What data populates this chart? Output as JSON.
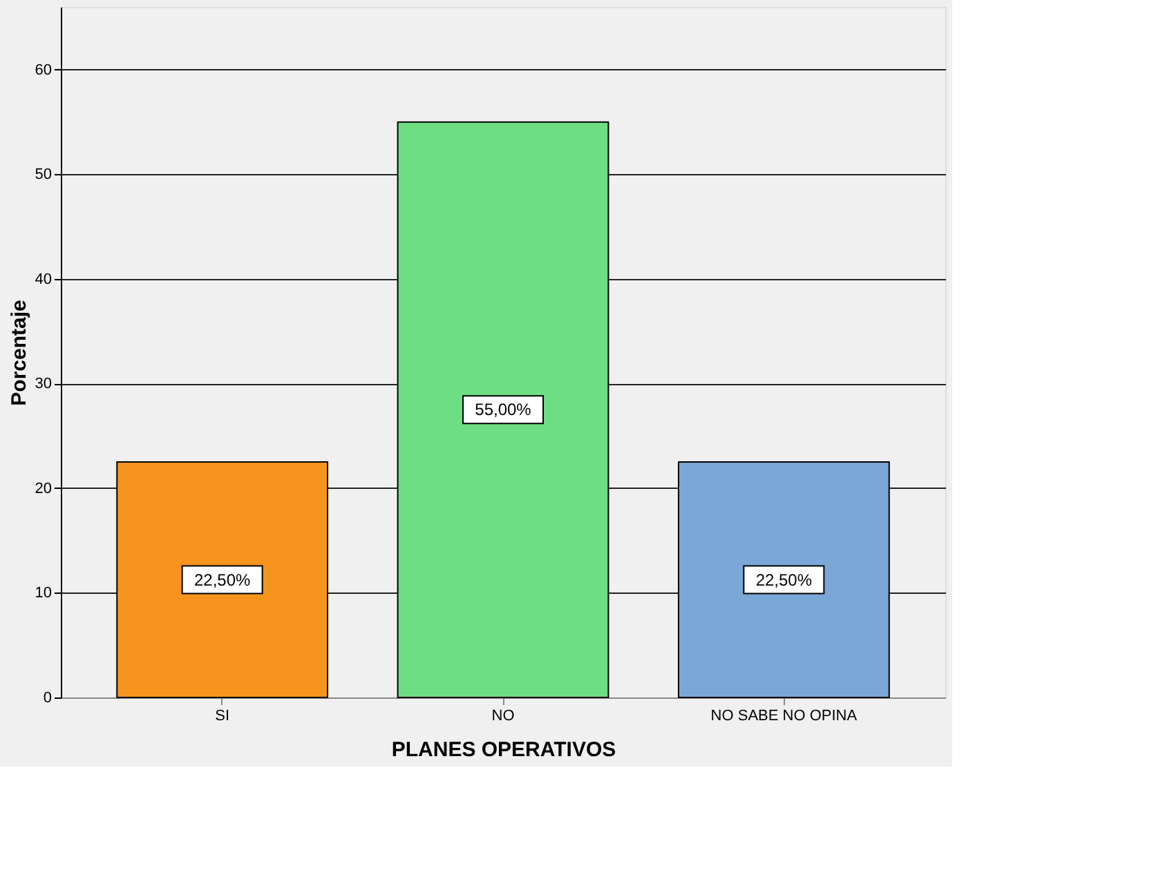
{
  "chart_data": {
    "type": "bar",
    "xlabel": "PLANES OPERATIVOS",
    "ylabel": "Porcentaje",
    "categories": [
      "SI",
      "NO",
      "NO SABE  NO OPINA"
    ],
    "values": [
      22.5,
      55.0,
      22.5
    ],
    "colors": [
      "#f7941d",
      "#6ede84",
      "#7ba7d6"
    ],
    "value_labels": [
      "22,50%",
      "55,00%",
      "22,50%"
    ],
    "ylim": [
      0,
      66
    ],
    "yticks": [
      0,
      10,
      20,
      30,
      40,
      50,
      60
    ],
    "grid": "y"
  }
}
